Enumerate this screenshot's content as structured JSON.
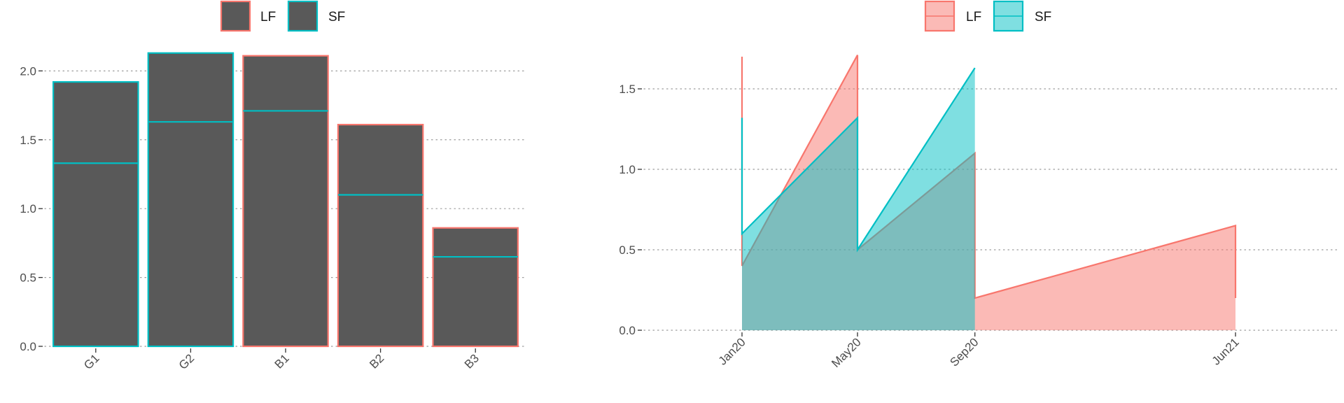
{
  "chart_data": [
    {
      "type": "bar",
      "stacked": false,
      "overlapped": true,
      "categories": [
        "G1",
        "G2",
        "B1",
        "B2",
        "B3"
      ],
      "fill_color": "#595959",
      "outline_colors_by_category": [
        "#00BFC4",
        "#00BFC4",
        "#F8766D",
        "#F8766D",
        "#F8766D"
      ],
      "series": [
        {
          "name": "LF",
          "color": "#F8766D",
          "values": [
            1.92,
            2.13,
            2.11,
            1.61,
            0.86
          ]
        },
        {
          "name": "SF",
          "color": "#00BFC4",
          "values": [
            1.33,
            1.63,
            1.71,
            1.1,
            0.65
          ]
        }
      ],
      "ylim": [
        0,
        2.2
      ],
      "yticks": [
        0.0,
        0.5,
        1.0,
        1.5,
        2.0
      ],
      "ytick_labels": [
        "0.0",
        "0.5",
        "1.0",
        "1.5",
        "2.0"
      ],
      "grid": "horizontal-dotted",
      "legend": {
        "position": "top",
        "entries": [
          "LF",
          "SF"
        ]
      }
    },
    {
      "type": "area",
      "x_is_date": true,
      "xlim": [
        "2019-11-01",
        "2021-10-01"
      ],
      "xticks": [
        "2020-01-01",
        "2020-05-01",
        "2020-09-01",
        "2021-06-01"
      ],
      "xtick_labels": [
        "Jan20",
        "May20",
        "Sep20",
        "Jun21"
      ],
      "ylim": [
        0,
        1.75
      ],
      "yticks": [
        0.0,
        0.5,
        1.0,
        1.5
      ],
      "ytick_labels": [
        "0.0",
        "0.5",
        "1.0",
        "1.5"
      ],
      "grid": "horizontal-dotted",
      "legend": {
        "position": "top",
        "entries": [
          "LF",
          "SF"
        ]
      },
      "series": [
        {
          "name": "LF",
          "color": "#F8766D",
          "fill": "#F8766D",
          "points": [
            [
              "2020-01-01",
              0
            ],
            [
              "2020-01-01",
              1.7
            ],
            [
              "2020-01-01",
              0.4
            ],
            [
              "2020-05-01",
              1.71
            ],
            [
              "2020-05-01",
              0.5
            ],
            [
              "2020-09-01",
              1.1
            ],
            [
              "2020-09-01",
              0.2
            ],
            [
              "2021-06-01",
              0.65
            ],
            [
              "2021-06-01",
              0.2
            ],
            [
              "2021-06-01",
              0
            ]
          ]
        },
        {
          "name": "SF",
          "color": "#00BFC4",
          "fill": "#00BFC4",
          "points": [
            [
              "2020-01-01",
              0
            ],
            [
              "2020-01-01",
              1.32
            ],
            [
              "2020-01-01",
              0.6
            ],
            [
              "2020-05-01",
              1.32
            ],
            [
              "2020-05-01",
              0.5
            ],
            [
              "2020-09-01",
              1.63
            ],
            [
              "2020-09-01",
              0
            ]
          ]
        }
      ]
    }
  ]
}
